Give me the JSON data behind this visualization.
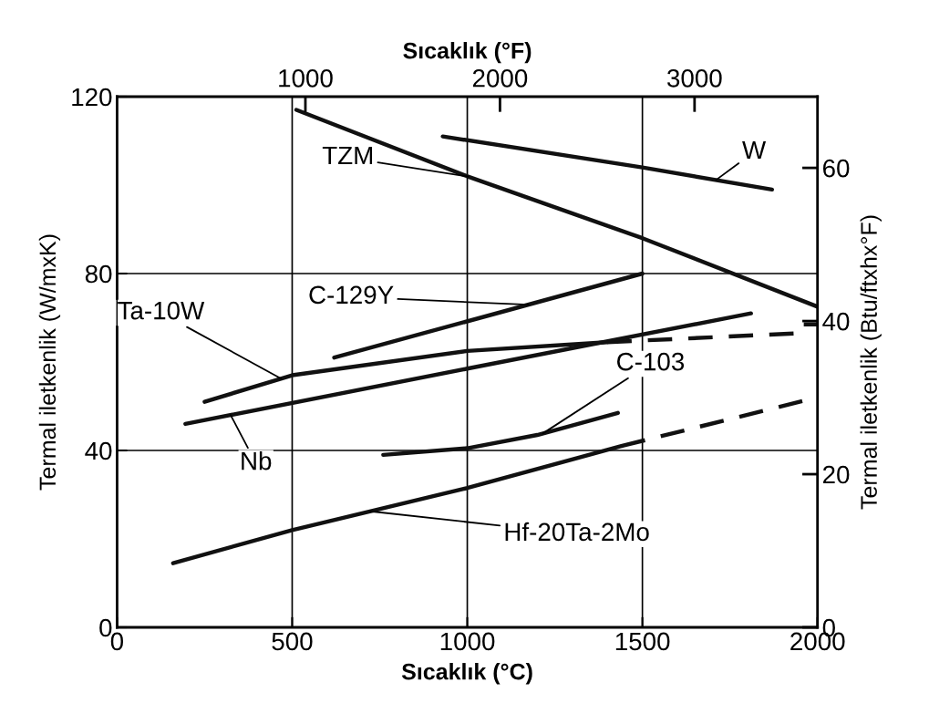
{
  "chart_data": {
    "type": "line",
    "xlabel": "Sıcaklık (°C)",
    "ylabel": "Termal iletkenlik (W/mxK)",
    "x2label": "Sıcaklık (°F)",
    "y2label": "Termal iletkenlik (Btu/ftxhx°F)",
    "xlim": [
      0,
      2000
    ],
    "xticks": [
      0,
      500,
      1000,
      1500,
      2000
    ],
    "ylim": [
      0,
      120
    ],
    "yticks": [
      0,
      40,
      80,
      120
    ],
    "x2lim": [
      32,
      3632
    ],
    "x2ticks": [
      1000,
      2000,
      3000
    ],
    "y2lim": [
      0,
      69.3
    ],
    "y2ticks": [
      0,
      20,
      40,
      60
    ],
    "grid": true,
    "marker": "none",
    "series": [
      {
        "name": "W",
        "color": "#111111",
        "line_style": "solid",
        "x": [
          930,
          1500,
          1870
        ],
        "values": [
          111,
          104,
          99
        ]
      },
      {
        "name": "TZM",
        "color": "#111111",
        "line_style": "solid",
        "x": [
          512,
          1000,
          1500,
          2000
        ],
        "values": [
          117,
          102,
          88,
          72.5
        ]
      },
      {
        "name": "C-129Y",
        "color": "#111111",
        "line_style": "solid",
        "x": [
          620,
          1500
        ],
        "values": [
          61,
          80
        ]
      },
      {
        "name": "Ta-10W",
        "color": "#111111",
        "line_style": "solid",
        "x": [
          250,
          500,
          1000,
          1400
        ],
        "values": [
          51,
          57,
          62.5,
          64.5
        ]
      },
      {
        "color": "#111111",
        "line_style": "dashed",
        "x": [
          1400,
          1950,
          1960,
          2000
        ],
        "values": [
          64.5,
          66.5,
          68.5,
          68.5
        ]
      },
      {
        "name": "Nb",
        "color": "#111111",
        "line_style": "solid",
        "x": [
          195,
          1000,
          1810
        ],
        "values": [
          46,
          58.5,
          71
        ]
      },
      {
        "name": "C-103",
        "color": "#111111",
        "line_style": "solid",
        "x": [
          760,
          1000,
          1200,
          1430
        ],
        "values": [
          39,
          40.5,
          43.5,
          48.5
        ]
      },
      {
        "name": "Hf-20Ta-2Mo",
        "color": "#111111",
        "line_style": "solid",
        "x": [
          160,
          500,
          1000,
          1440
        ],
        "values": [
          14.5,
          22,
          31.5,
          41
        ]
      },
      {
        "color": "#111111",
        "line_style": "dashed",
        "x": [
          1440,
          2000
        ],
        "values": [
          41,
          52
        ]
      }
    ]
  }
}
